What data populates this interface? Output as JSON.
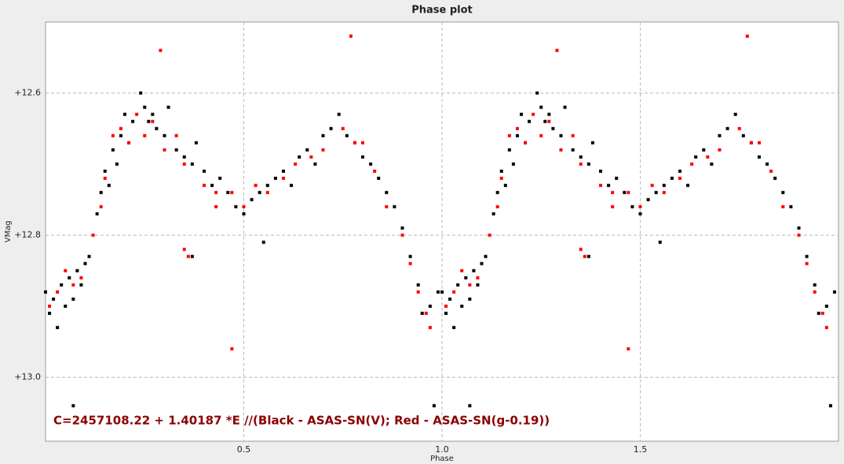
{
  "chart_data": {
    "type": "scatter",
    "title": "Phase plot",
    "x_label": "Phase",
    "y_label": "VMag",
    "annotation": "C=2457108.22 + 1.40187 *E //(Black - ASAS-SN(V); Red - ASAS-SN(g-0.19))",
    "xlim": [
      0,
      2
    ],
    "ylim": [
      12.5,
      13.09
    ],
    "y_inverted": true,
    "grid": true,
    "xticks": [
      0.5,
      {
        "value": 1,
        "label": "1.0"
      },
      1.5
    ],
    "yticks": [
      {
        "value": 12.6,
        "label": "+12.6"
      },
      {
        "value": 12.8,
        "label": "+12.8"
      },
      {
        "value": 13,
        "label": "+13.0"
      }
    ],
    "annotation_color": "#8b0000",
    "series": [
      {
        "color": "#000000",
        "x": [
          0,
          0.01,
          0.02,
          0.03,
          0.04,
          0.05,
          0.06,
          0.07,
          0.08,
          0.09,
          0.1,
          0.11,
          0.13,
          0.14,
          0.15,
          0.16,
          0.17,
          0.18,
          0.19,
          0.2,
          0.21,
          0.22,
          0.24,
          0.25,
          0.26,
          0.27,
          0.28,
          0.3,
          0.31,
          0.33,
          0.35,
          0.37,
          0.38,
          0.4,
          0.42,
          0.44,
          0.46,
          0.48,
          0.5,
          0.52,
          0.54,
          0.56,
          0.58,
          0.6,
          0.62,
          0.64,
          0.66,
          0.68,
          0.7,
          0.72,
          0.74,
          0.76,
          0.78,
          0.8,
          0.82,
          0.84,
          0.86,
          0.88,
          0.9,
          0.92,
          0.94,
          0.95,
          0.97,
          0.99,
          0.55,
          0.37,
          0.98,
          0.07,
          1,
          1.01,
          1.02,
          1.03,
          1.04,
          1.05,
          1.06,
          1.07,
          1.08,
          1.09,
          1.1,
          1.11,
          1.13,
          1.14,
          1.15,
          1.16,
          1.17,
          1.18,
          1.19,
          1.2,
          1.21,
          1.22,
          1.24,
          1.25,
          1.26,
          1.27,
          1.28,
          1.3,
          1.31,
          1.33,
          1.35,
          1.37,
          1.38,
          1.4,
          1.42,
          1.44,
          1.46,
          1.48,
          1.5,
          1.52,
          1.54,
          1.56,
          1.58,
          1.6,
          1.62,
          1.64,
          1.66,
          1.68,
          1.7,
          1.72,
          1.74,
          1.76,
          1.78,
          1.8,
          1.82,
          1.84,
          1.86,
          1.88,
          1.9,
          1.92,
          1.94,
          1.95,
          1.97,
          1.99,
          1.55,
          1.37,
          1.98,
          1.07
        ],
        "values": [
          12.88,
          12.91,
          12.89,
          12.93,
          12.87,
          12.9,
          12.86,
          12.89,
          12.85,
          12.87,
          12.84,
          12.83,
          12.77,
          12.74,
          12.71,
          12.73,
          12.68,
          12.7,
          12.66,
          12.63,
          12.67,
          12.64,
          12.6,
          12.62,
          12.64,
          12.63,
          12.65,
          12.66,
          12.62,
          12.68,
          12.69,
          12.7,
          12.67,
          12.71,
          12.73,
          12.72,
          12.74,
          12.76,
          12.77,
          12.75,
          12.74,
          12.73,
          12.72,
          12.71,
          12.73,
          12.69,
          12.68,
          12.7,
          12.66,
          12.65,
          12.63,
          12.66,
          12.67,
          12.69,
          12.7,
          12.72,
          12.74,
          12.76,
          12.79,
          12.83,
          12.87,
          12.91,
          12.9,
          12.88,
          12.81,
          12.83,
          13.04,
          13.04,
          12.88,
          12.91,
          12.89,
          12.93,
          12.87,
          12.9,
          12.86,
          12.89,
          12.85,
          12.87,
          12.84,
          12.83,
          12.77,
          12.74,
          12.71,
          12.73,
          12.68,
          12.7,
          12.66,
          12.63,
          12.67,
          12.64,
          12.6,
          12.62,
          12.64,
          12.63,
          12.65,
          12.66,
          12.62,
          12.68,
          12.69,
          12.7,
          12.67,
          12.71,
          12.73,
          12.72,
          12.74,
          12.76,
          12.77,
          12.75,
          12.74,
          12.73,
          12.72,
          12.71,
          12.73,
          12.69,
          12.68,
          12.7,
          12.66,
          12.65,
          12.63,
          12.66,
          12.67,
          12.69,
          12.7,
          12.72,
          12.74,
          12.76,
          12.79,
          12.83,
          12.87,
          12.91,
          12.9,
          12.88,
          12.81,
          12.83,
          13.04,
          13.04
        ]
      },
      {
        "color": "#ff0000",
        "x": [
          0.01,
          0.03,
          0.05,
          0.07,
          0.09,
          0.12,
          0.14,
          0.15,
          0.17,
          0.19,
          0.21,
          0.23,
          0.25,
          0.27,
          0.29,
          0.3,
          0.33,
          0.35,
          0.4,
          0.43,
          0.47,
          0.47,
          0.5,
          0.53,
          0.56,
          0.6,
          0.63,
          0.67,
          0.7,
          0.75,
          0.77,
          0.78,
          0.8,
          0.83,
          0.86,
          0.9,
          0.92,
          0.94,
          0.96,
          0.97,
          0.35,
          0.43,
          0.36,
          1.01,
          1.03,
          1.05,
          1.07,
          1.09,
          1.12,
          1.14,
          1.15,
          1.17,
          1.19,
          1.21,
          1.23,
          1.25,
          1.27,
          1.29,
          1.3,
          1.33,
          1.35,
          1.4,
          1.43,
          1.47,
          1.47,
          1.5,
          1.53,
          1.56,
          1.6,
          1.63,
          1.67,
          1.7,
          1.75,
          1.77,
          1.78,
          1.8,
          1.83,
          1.86,
          1.9,
          1.92,
          1.94,
          1.96,
          1.97,
          1.35,
          1.43,
          1.36
        ],
        "values": [
          12.9,
          12.88,
          12.85,
          12.87,
          12.86,
          12.8,
          12.76,
          12.72,
          12.66,
          12.65,
          12.67,
          12.63,
          12.66,
          12.64,
          12.54,
          12.68,
          12.66,
          12.7,
          12.73,
          12.74,
          12.74,
          12.96,
          12.76,
          12.73,
          12.74,
          12.72,
          12.7,
          12.69,
          12.68,
          12.65,
          12.52,
          12.67,
          12.67,
          12.71,
          12.76,
          12.8,
          12.84,
          12.88,
          12.91,
          12.93,
          12.82,
          12.76,
          12.83,
          12.9,
          12.88,
          12.85,
          12.87,
          12.86,
          12.8,
          12.76,
          12.72,
          12.66,
          12.65,
          12.67,
          12.63,
          12.66,
          12.64,
          12.54,
          12.68,
          12.66,
          12.7,
          12.73,
          12.74,
          12.74,
          12.96,
          12.76,
          12.73,
          12.74,
          12.72,
          12.7,
          12.69,
          12.68,
          12.65,
          12.52,
          12.67,
          12.67,
          12.71,
          12.76,
          12.8,
          12.84,
          12.88,
          12.91,
          12.93,
          12.82,
          12.76,
          12.83
        ]
      }
    ]
  }
}
